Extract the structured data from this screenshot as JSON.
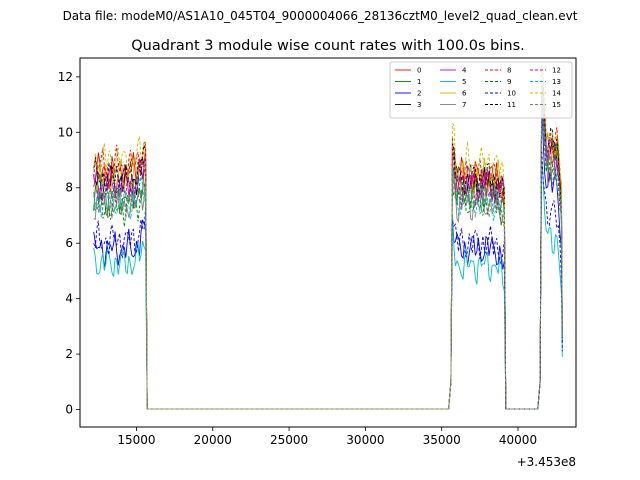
{
  "chart_data": {
    "type": "line",
    "suptitle": "Data file: modeM0/AS1A10_045T04_9000004066_28136cztM0_level2_quad_clean.evt",
    "title": "Quadrant 3 module wise count rates with 100.0s bins.",
    "xlabel": "",
    "ylabel": "",
    "x_offset_label": "+3.453e8",
    "xlim": [
      11300,
      43800
    ],
    "ylim": [
      -0.63,
      12.68
    ],
    "xticks": [
      15000,
      20000,
      25000,
      30000,
      35000,
      40000
    ],
    "xtick_labels": [
      "15000",
      "20000",
      "25000",
      "30000",
      "35000",
      "40000"
    ],
    "yticks": [
      0,
      2,
      4,
      6,
      8,
      10,
      12
    ],
    "ytick_labels": [
      "0",
      "2",
      "4",
      "6",
      "8",
      "10",
      "12"
    ],
    "legend_position": "upper right",
    "segments": [
      {
        "start": 12200,
        "end": 15600
      },
      {
        "start": 35700,
        "end": 39100
      },
      {
        "start": 41550,
        "end": 42850
      }
    ],
    "quiet_rate": 0.02,
    "series": [
      {
        "name": "0",
        "color": "#ff0000",
        "dash": "solid",
        "base": [
          8.6,
          8.4,
          9.0
        ]
      },
      {
        "name": "1",
        "color": "#008000",
        "dash": "solid",
        "base": [
          7.6,
          7.8,
          9.2
        ]
      },
      {
        "name": "2",
        "color": "#0000ff",
        "dash": "solid",
        "base": [
          5.8,
          5.8,
          8.1
        ]
      },
      {
        "name": "3",
        "color": "#000000",
        "dash": "solid",
        "base": [
          8.2,
          8.2,
          9.4
        ]
      },
      {
        "name": "4",
        "color": "#bf00bf",
        "dash": "solid",
        "base": [
          8.2,
          8.2,
          9.2
        ]
      },
      {
        "name": "5",
        "color": "#00bfbf",
        "dash": "solid",
        "base": [
          5.3,
          5.2,
          6.2
        ]
      },
      {
        "name": "6",
        "color": "#bfbf00",
        "dash": "solid",
        "base": [
          8.4,
          8.4,
          9.4
        ]
      },
      {
        "name": "7",
        "color": "#808080",
        "dash": "solid",
        "base": [
          7.4,
          7.4,
          8.6
        ]
      },
      {
        "name": "8",
        "color": "#ff0000",
        "dash": "dashed",
        "base": [
          8.8,
          8.4,
          9.6
        ]
      },
      {
        "name": "9",
        "color": "#008000",
        "dash": "dashed",
        "base": [
          7.3,
          7.5,
          8.8
        ]
      },
      {
        "name": "10",
        "color": "#0000ff",
        "dash": "dashed",
        "base": [
          6.1,
          6.0,
          7.0
        ]
      },
      {
        "name": "11",
        "color": "#000000",
        "dash": "dashed",
        "base": [
          8.4,
          8.3,
          9.6
        ]
      },
      {
        "name": "12",
        "color": "#bf00bf",
        "dash": "dashed",
        "base": [
          7.9,
          7.9,
          9.1
        ]
      },
      {
        "name": "13",
        "color": "#00bfbf",
        "dash": "dashed",
        "base": [
          7.5,
          7.5,
          8.7
        ]
      },
      {
        "name": "14",
        "color": "#bfbf00",
        "dash": "dashed",
        "base": [
          9.0,
          8.9,
          9.8
        ]
      },
      {
        "name": "15",
        "color": "#808080",
        "dash": "dashed",
        "base": [
          7.6,
          7.6,
          8.8
        ]
      }
    ]
  }
}
